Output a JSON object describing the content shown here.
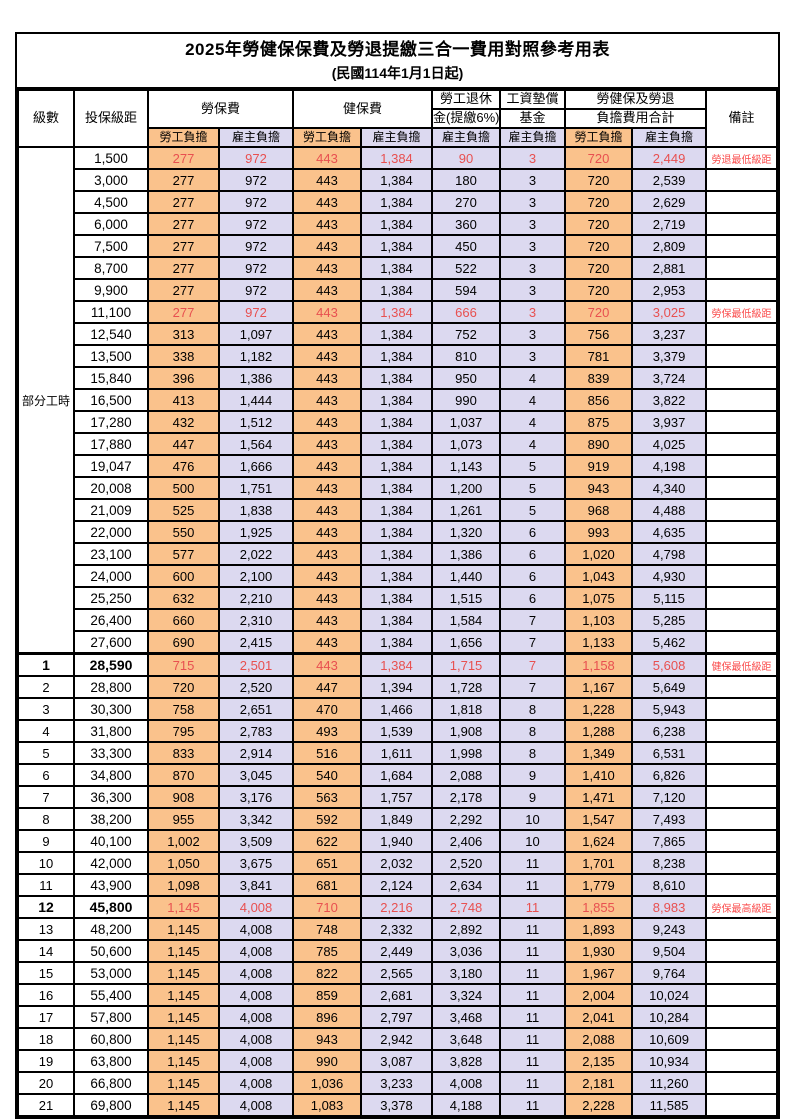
{
  "title": "2025年勞健保保費及勞退提繳三合一費用對照參考用表",
  "subtitle": "(民國114年1月1日起)",
  "colors": {
    "employee_column_bg": "#FAC28C",
    "employer_column_bg": "#DCD9F0",
    "highlight_value_text": "#E85050",
    "remark_text": "#FA4B4B",
    "border": "#000000"
  },
  "table": {
    "header": {
      "level": "級數",
      "bracket": "投保級距",
      "labor_insurance": "勞保費",
      "health_insurance": "健保費",
      "pension_line1": "勞工退休",
      "pension_line2": "金(提繳6%)",
      "wage_fund_line1": "工資墊償",
      "wage_fund_line2": "基金",
      "total_line1": "勞健保及勞退",
      "total_line2": "負擔費用合計",
      "remark": "備註",
      "sub_headers": [
        {
          "label": "勞工負擔",
          "type": "employee"
        },
        {
          "label": "雇主負擔",
          "type": "employer"
        },
        {
          "label": "勞工負擔",
          "type": "employee"
        },
        {
          "label": "雇主負擔",
          "type": "employer"
        },
        {
          "label": "雇主負擔",
          "type": "employer"
        },
        {
          "label": "雇主負擔",
          "type": "employer"
        },
        {
          "label": "勞工負擔",
          "type": "employee"
        },
        {
          "label": "雇主負擔",
          "type": "employer"
        }
      ]
    },
    "part_time_label": "部分工時",
    "part_time_rowspan": 23,
    "rows": [
      {
        "level": "",
        "bracket": "1,500",
        "values": [
          "277",
          "972",
          "443",
          "1,384",
          "90",
          "3",
          "720",
          "2,449"
        ],
        "remark": "勞退最低級距",
        "highlight": true,
        "bold": false,
        "section_start": false
      },
      {
        "level": "",
        "bracket": "3,000",
        "values": [
          "277",
          "972",
          "443",
          "1,384",
          "180",
          "3",
          "720",
          "2,539"
        ],
        "remark": "",
        "highlight": false,
        "bold": false,
        "section_start": false
      },
      {
        "level": "",
        "bracket": "4,500",
        "values": [
          "277",
          "972",
          "443",
          "1,384",
          "270",
          "3",
          "720",
          "2,629"
        ],
        "remark": "",
        "highlight": false,
        "bold": false,
        "section_start": false
      },
      {
        "level": "",
        "bracket": "6,000",
        "values": [
          "277",
          "972",
          "443",
          "1,384",
          "360",
          "3",
          "720",
          "2,719"
        ],
        "remark": "",
        "highlight": false,
        "bold": false,
        "section_start": false
      },
      {
        "level": "",
        "bracket": "7,500",
        "values": [
          "277",
          "972",
          "443",
          "1,384",
          "450",
          "3",
          "720",
          "2,809"
        ],
        "remark": "",
        "highlight": false,
        "bold": false,
        "section_start": false
      },
      {
        "level": "",
        "bracket": "8,700",
        "values": [
          "277",
          "972",
          "443",
          "1,384",
          "522",
          "3",
          "720",
          "2,881"
        ],
        "remark": "",
        "highlight": false,
        "bold": false,
        "section_start": false
      },
      {
        "level": "",
        "bracket": "9,900",
        "values": [
          "277",
          "972",
          "443",
          "1,384",
          "594",
          "3",
          "720",
          "2,953"
        ],
        "remark": "",
        "highlight": false,
        "bold": false,
        "section_start": false
      },
      {
        "level": "",
        "bracket": "11,100",
        "values": [
          "277",
          "972",
          "443",
          "1,384",
          "666",
          "3",
          "720",
          "3,025"
        ],
        "remark": "勞保最低級距",
        "highlight": true,
        "bold": false,
        "section_start": false
      },
      {
        "level": "",
        "bracket": "12,540",
        "values": [
          "313",
          "1,097",
          "443",
          "1,384",
          "752",
          "3",
          "756",
          "3,237"
        ],
        "remark": "",
        "highlight": false,
        "bold": false,
        "section_start": false
      },
      {
        "level": "",
        "bracket": "13,500",
        "values": [
          "338",
          "1,182",
          "443",
          "1,384",
          "810",
          "3",
          "781",
          "3,379"
        ],
        "remark": "",
        "highlight": false,
        "bold": false,
        "section_start": false
      },
      {
        "level": "",
        "bracket": "15,840",
        "values": [
          "396",
          "1,386",
          "443",
          "1,384",
          "950",
          "4",
          "839",
          "3,724"
        ],
        "remark": "",
        "highlight": false,
        "bold": false,
        "section_start": false
      },
      {
        "level": "",
        "bracket": "16,500",
        "values": [
          "413",
          "1,444",
          "443",
          "1,384",
          "990",
          "4",
          "856",
          "3,822"
        ],
        "remark": "",
        "highlight": false,
        "bold": false,
        "section_start": false
      },
      {
        "level": "",
        "bracket": "17,280",
        "values": [
          "432",
          "1,512",
          "443",
          "1,384",
          "1,037",
          "4",
          "875",
          "3,937"
        ],
        "remark": "",
        "highlight": false,
        "bold": false,
        "section_start": false
      },
      {
        "level": "",
        "bracket": "17,880",
        "values": [
          "447",
          "1,564",
          "443",
          "1,384",
          "1,073",
          "4",
          "890",
          "4,025"
        ],
        "remark": "",
        "highlight": false,
        "bold": false,
        "section_start": false
      },
      {
        "level": "",
        "bracket": "19,047",
        "values": [
          "476",
          "1,666",
          "443",
          "1,384",
          "1,143",
          "5",
          "919",
          "4,198"
        ],
        "remark": "",
        "highlight": false,
        "bold": false,
        "section_start": false
      },
      {
        "level": "",
        "bracket": "20,008",
        "values": [
          "500",
          "1,751",
          "443",
          "1,384",
          "1,200",
          "5",
          "943",
          "4,340"
        ],
        "remark": "",
        "highlight": false,
        "bold": false,
        "section_start": false
      },
      {
        "level": "",
        "bracket": "21,009",
        "values": [
          "525",
          "1,838",
          "443",
          "1,384",
          "1,261",
          "5",
          "968",
          "4,488"
        ],
        "remark": "",
        "highlight": false,
        "bold": false,
        "section_start": false
      },
      {
        "level": "",
        "bracket": "22,000",
        "values": [
          "550",
          "1,925",
          "443",
          "1,384",
          "1,320",
          "6",
          "993",
          "4,635"
        ],
        "remark": "",
        "highlight": false,
        "bold": false,
        "section_start": false
      },
      {
        "level": "",
        "bracket": "23,100",
        "values": [
          "577",
          "2,022",
          "443",
          "1,384",
          "1,386",
          "6",
          "1,020",
          "4,798"
        ],
        "remark": "",
        "highlight": false,
        "bold": false,
        "section_start": false
      },
      {
        "level": "",
        "bracket": "24,000",
        "values": [
          "600",
          "2,100",
          "443",
          "1,384",
          "1,440",
          "6",
          "1,043",
          "4,930"
        ],
        "remark": "",
        "highlight": false,
        "bold": false,
        "section_start": false
      },
      {
        "level": "",
        "bracket": "25,250",
        "values": [
          "632",
          "2,210",
          "443",
          "1,384",
          "1,515",
          "6",
          "1,075",
          "5,115"
        ],
        "remark": "",
        "highlight": false,
        "bold": false,
        "section_start": false
      },
      {
        "level": "",
        "bracket": "26,400",
        "values": [
          "660",
          "2,310",
          "443",
          "1,384",
          "1,584",
          "7",
          "1,103",
          "5,285"
        ],
        "remark": "",
        "highlight": false,
        "bold": false,
        "section_start": false
      },
      {
        "level": "",
        "bracket": "27,600",
        "values": [
          "690",
          "2,415",
          "443",
          "1,384",
          "1,656",
          "7",
          "1,133",
          "5,462"
        ],
        "remark": "",
        "highlight": false,
        "bold": false,
        "section_start": false
      },
      {
        "level": "1",
        "bracket": "28,590",
        "values": [
          "715",
          "2,501",
          "443",
          "1,384",
          "1,715",
          "7",
          "1,158",
          "5,608"
        ],
        "remark": "健保最低級距",
        "highlight": true,
        "bold": true,
        "section_start": true
      },
      {
        "level": "2",
        "bracket": "28,800",
        "values": [
          "720",
          "2,520",
          "447",
          "1,394",
          "1,728",
          "7",
          "1,167",
          "5,649"
        ],
        "remark": "",
        "highlight": false,
        "bold": false,
        "section_start": false
      },
      {
        "level": "3",
        "bracket": "30,300",
        "values": [
          "758",
          "2,651",
          "470",
          "1,466",
          "1,818",
          "8",
          "1,228",
          "5,943"
        ],
        "remark": "",
        "highlight": false,
        "bold": false,
        "section_start": false
      },
      {
        "level": "4",
        "bracket": "31,800",
        "values": [
          "795",
          "2,783",
          "493",
          "1,539",
          "1,908",
          "8",
          "1,288",
          "6,238"
        ],
        "remark": "",
        "highlight": false,
        "bold": false,
        "section_start": false
      },
      {
        "level": "5",
        "bracket": "33,300",
        "values": [
          "833",
          "2,914",
          "516",
          "1,611",
          "1,998",
          "8",
          "1,349",
          "6,531"
        ],
        "remark": "",
        "highlight": false,
        "bold": false,
        "section_start": false
      },
      {
        "level": "6",
        "bracket": "34,800",
        "values": [
          "870",
          "3,045",
          "540",
          "1,684",
          "2,088",
          "9",
          "1,410",
          "6,826"
        ],
        "remark": "",
        "highlight": false,
        "bold": false,
        "section_start": false
      },
      {
        "level": "7",
        "bracket": "36,300",
        "values": [
          "908",
          "3,176",
          "563",
          "1,757",
          "2,178",
          "9",
          "1,471",
          "7,120"
        ],
        "remark": "",
        "highlight": false,
        "bold": false,
        "section_start": false
      },
      {
        "level": "8",
        "bracket": "38,200",
        "values": [
          "955",
          "3,342",
          "592",
          "1,849",
          "2,292",
          "10",
          "1,547",
          "7,493"
        ],
        "remark": "",
        "highlight": false,
        "bold": false,
        "section_start": false
      },
      {
        "level": "9",
        "bracket": "40,100",
        "values": [
          "1,002",
          "3,509",
          "622",
          "1,940",
          "2,406",
          "10",
          "1,624",
          "7,865"
        ],
        "remark": "",
        "highlight": false,
        "bold": false,
        "section_start": false
      },
      {
        "level": "10",
        "bracket": "42,000",
        "values": [
          "1,050",
          "3,675",
          "651",
          "2,032",
          "2,520",
          "11",
          "1,701",
          "8,238"
        ],
        "remark": "",
        "highlight": false,
        "bold": false,
        "section_start": false
      },
      {
        "level": "11",
        "bracket": "43,900",
        "values": [
          "1,098",
          "3,841",
          "681",
          "2,124",
          "2,634",
          "11",
          "1,779",
          "8,610"
        ],
        "remark": "",
        "highlight": false,
        "bold": false,
        "section_start": false
      },
      {
        "level": "12",
        "bracket": "45,800",
        "values": [
          "1,145",
          "4,008",
          "710",
          "2,216",
          "2,748",
          "11",
          "1,855",
          "8,983"
        ],
        "remark": "勞保最高級距",
        "highlight": true,
        "bold": true,
        "section_start": false
      },
      {
        "level": "13",
        "bracket": "48,200",
        "values": [
          "1,145",
          "4,008",
          "748",
          "2,332",
          "2,892",
          "11",
          "1,893",
          "9,243"
        ],
        "remark": "",
        "highlight": false,
        "bold": false,
        "section_start": false
      },
      {
        "level": "14",
        "bracket": "50,600",
        "values": [
          "1,145",
          "4,008",
          "785",
          "2,449",
          "3,036",
          "11",
          "1,930",
          "9,504"
        ],
        "remark": "",
        "highlight": false,
        "bold": false,
        "section_start": false
      },
      {
        "level": "15",
        "bracket": "53,000",
        "values": [
          "1,145",
          "4,008",
          "822",
          "2,565",
          "3,180",
          "11",
          "1,967",
          "9,764"
        ],
        "remark": "",
        "highlight": false,
        "bold": false,
        "section_start": false
      },
      {
        "level": "16",
        "bracket": "55,400",
        "values": [
          "1,145",
          "4,008",
          "859",
          "2,681",
          "3,324",
          "11",
          "2,004",
          "10,024"
        ],
        "remark": "",
        "highlight": false,
        "bold": false,
        "section_start": false
      },
      {
        "level": "17",
        "bracket": "57,800",
        "values": [
          "1,145",
          "4,008",
          "896",
          "2,797",
          "3,468",
          "11",
          "2,041",
          "10,284"
        ],
        "remark": "",
        "highlight": false,
        "bold": false,
        "section_start": false
      },
      {
        "level": "18",
        "bracket": "60,800",
        "values": [
          "1,145",
          "4,008",
          "943",
          "2,942",
          "3,648",
          "11",
          "2,088",
          "10,609"
        ],
        "remark": "",
        "highlight": false,
        "bold": false,
        "section_start": false
      },
      {
        "level": "19",
        "bracket": "63,800",
        "values": [
          "1,145",
          "4,008",
          "990",
          "3,087",
          "3,828",
          "11",
          "2,135",
          "10,934"
        ],
        "remark": "",
        "highlight": false,
        "bold": false,
        "section_start": false
      },
      {
        "level": "20",
        "bracket": "66,800",
        "values": [
          "1,145",
          "4,008",
          "1,036",
          "3,233",
          "4,008",
          "11",
          "2,181",
          "11,260"
        ],
        "remark": "",
        "highlight": false,
        "bold": false,
        "section_start": false
      },
      {
        "level": "21",
        "bracket": "69,800",
        "values": [
          "1,145",
          "4,008",
          "1,083",
          "3,378",
          "4,188",
          "11",
          "2,228",
          "11,585"
        ],
        "remark": "",
        "highlight": false,
        "bold": false,
        "section_start": false
      }
    ]
  }
}
